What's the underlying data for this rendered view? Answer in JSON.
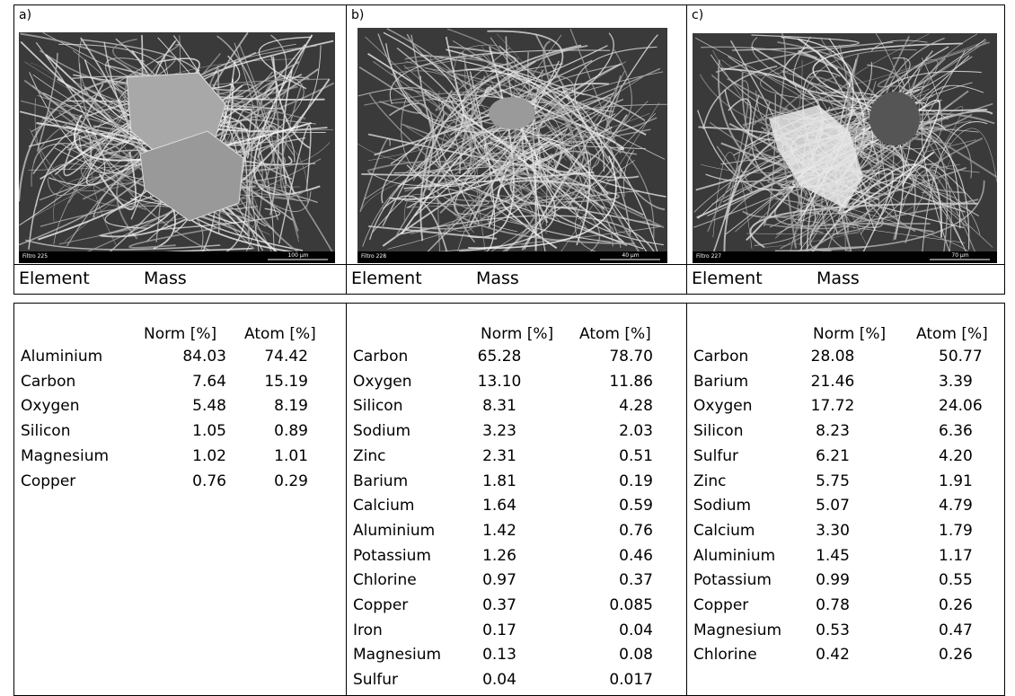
{
  "panels": [
    {
      "label": "a)",
      "image_caption": "Filtro 225",
      "scale_bar": "100 µm",
      "element_header": "Element",
      "mass_header": "Mass",
      "norm_header": "Norm [%]",
      "atom_header": "Atom [%]",
      "rows": [
        [
          "Aluminium",
          "84.03",
          "74.42"
        ],
        [
          "Carbon",
          "7.64",
          "15.19"
        ],
        [
          "Oxygen",
          "5.48",
          "8.19"
        ],
        [
          "Silicon",
          "1.05",
          "0.89"
        ],
        [
          "Magnesium",
          "1.02",
          "1.01"
        ],
        [
          "Copper",
          "0.76",
          "0.29"
        ]
      ]
    },
    {
      "label": "b)",
      "image_caption": "Filtro 228",
      "scale_bar": "40 µm",
      "element_header": "Element",
      "mass_header": "Mass",
      "norm_header": "Norm [%]",
      "atom_header": "Atom [%]",
      "rows": [
        [
          "Carbon",
          "65.28",
          "78.70"
        ],
        [
          "Oxygen",
          "13.10",
          "11.86"
        ],
        [
          "Silicon",
          "8.31",
          "4.28"
        ],
        [
          "Sodium",
          "3.23",
          "2.03"
        ],
        [
          "Zinc",
          "2.31",
          "0.51"
        ],
        [
          "Barium",
          "1.81",
          "0.19"
        ],
        [
          "Calcium",
          "1.64",
          "0.59"
        ],
        [
          "Aluminium",
          "1.42",
          "0.76"
        ],
        [
          "Potassium",
          "1.26",
          "0.46"
        ],
        [
          "Chlorine",
          "0.97",
          "0.37"
        ],
        [
          "Copper",
          "0.37",
          "0.085"
        ],
        [
          "Iron",
          "0.17",
          "0.04"
        ],
        [
          "Magnesium",
          "0.13",
          "0.08"
        ],
        [
          "Sulfur",
          "0.04",
          "0.017"
        ]
      ]
    },
    {
      "label": "c)",
      "image_caption": "Filtro 227",
      "scale_bar": "70 µm",
      "element_header": "Element",
      "mass_header": "Mass",
      "norm_header": "Norm [%]",
      "atom_header": "Atom [%]",
      "rows": [
        [
          "Carbon",
          "28.08",
          "50.77"
        ],
        [
          "Barium",
          "21.46",
          "3.39"
        ],
        [
          "Oxygen",
          "17.72",
          "24.06"
        ],
        [
          "Silicon",
          "8.23",
          "6.36"
        ],
        [
          "Sulfur",
          "6.21",
          "4.20"
        ],
        [
          "Zinc",
          "5.75",
          "1.91"
        ],
        [
          "Sodium",
          "5.07",
          "4.79"
        ],
        [
          "Calcium",
          "3.30",
          "1.79"
        ],
        [
          "Aluminium",
          "1.45",
          "1.17"
        ],
        [
          "Potassium",
          "0.99",
          "0.55"
        ],
        [
          "Copper",
          "0.78",
          "0.26"
        ],
        [
          "Magnesium",
          "0.53",
          "0.47"
        ],
        [
          "Chlorine",
          "0.42",
          "0.26"
        ]
      ]
    }
  ]
}
